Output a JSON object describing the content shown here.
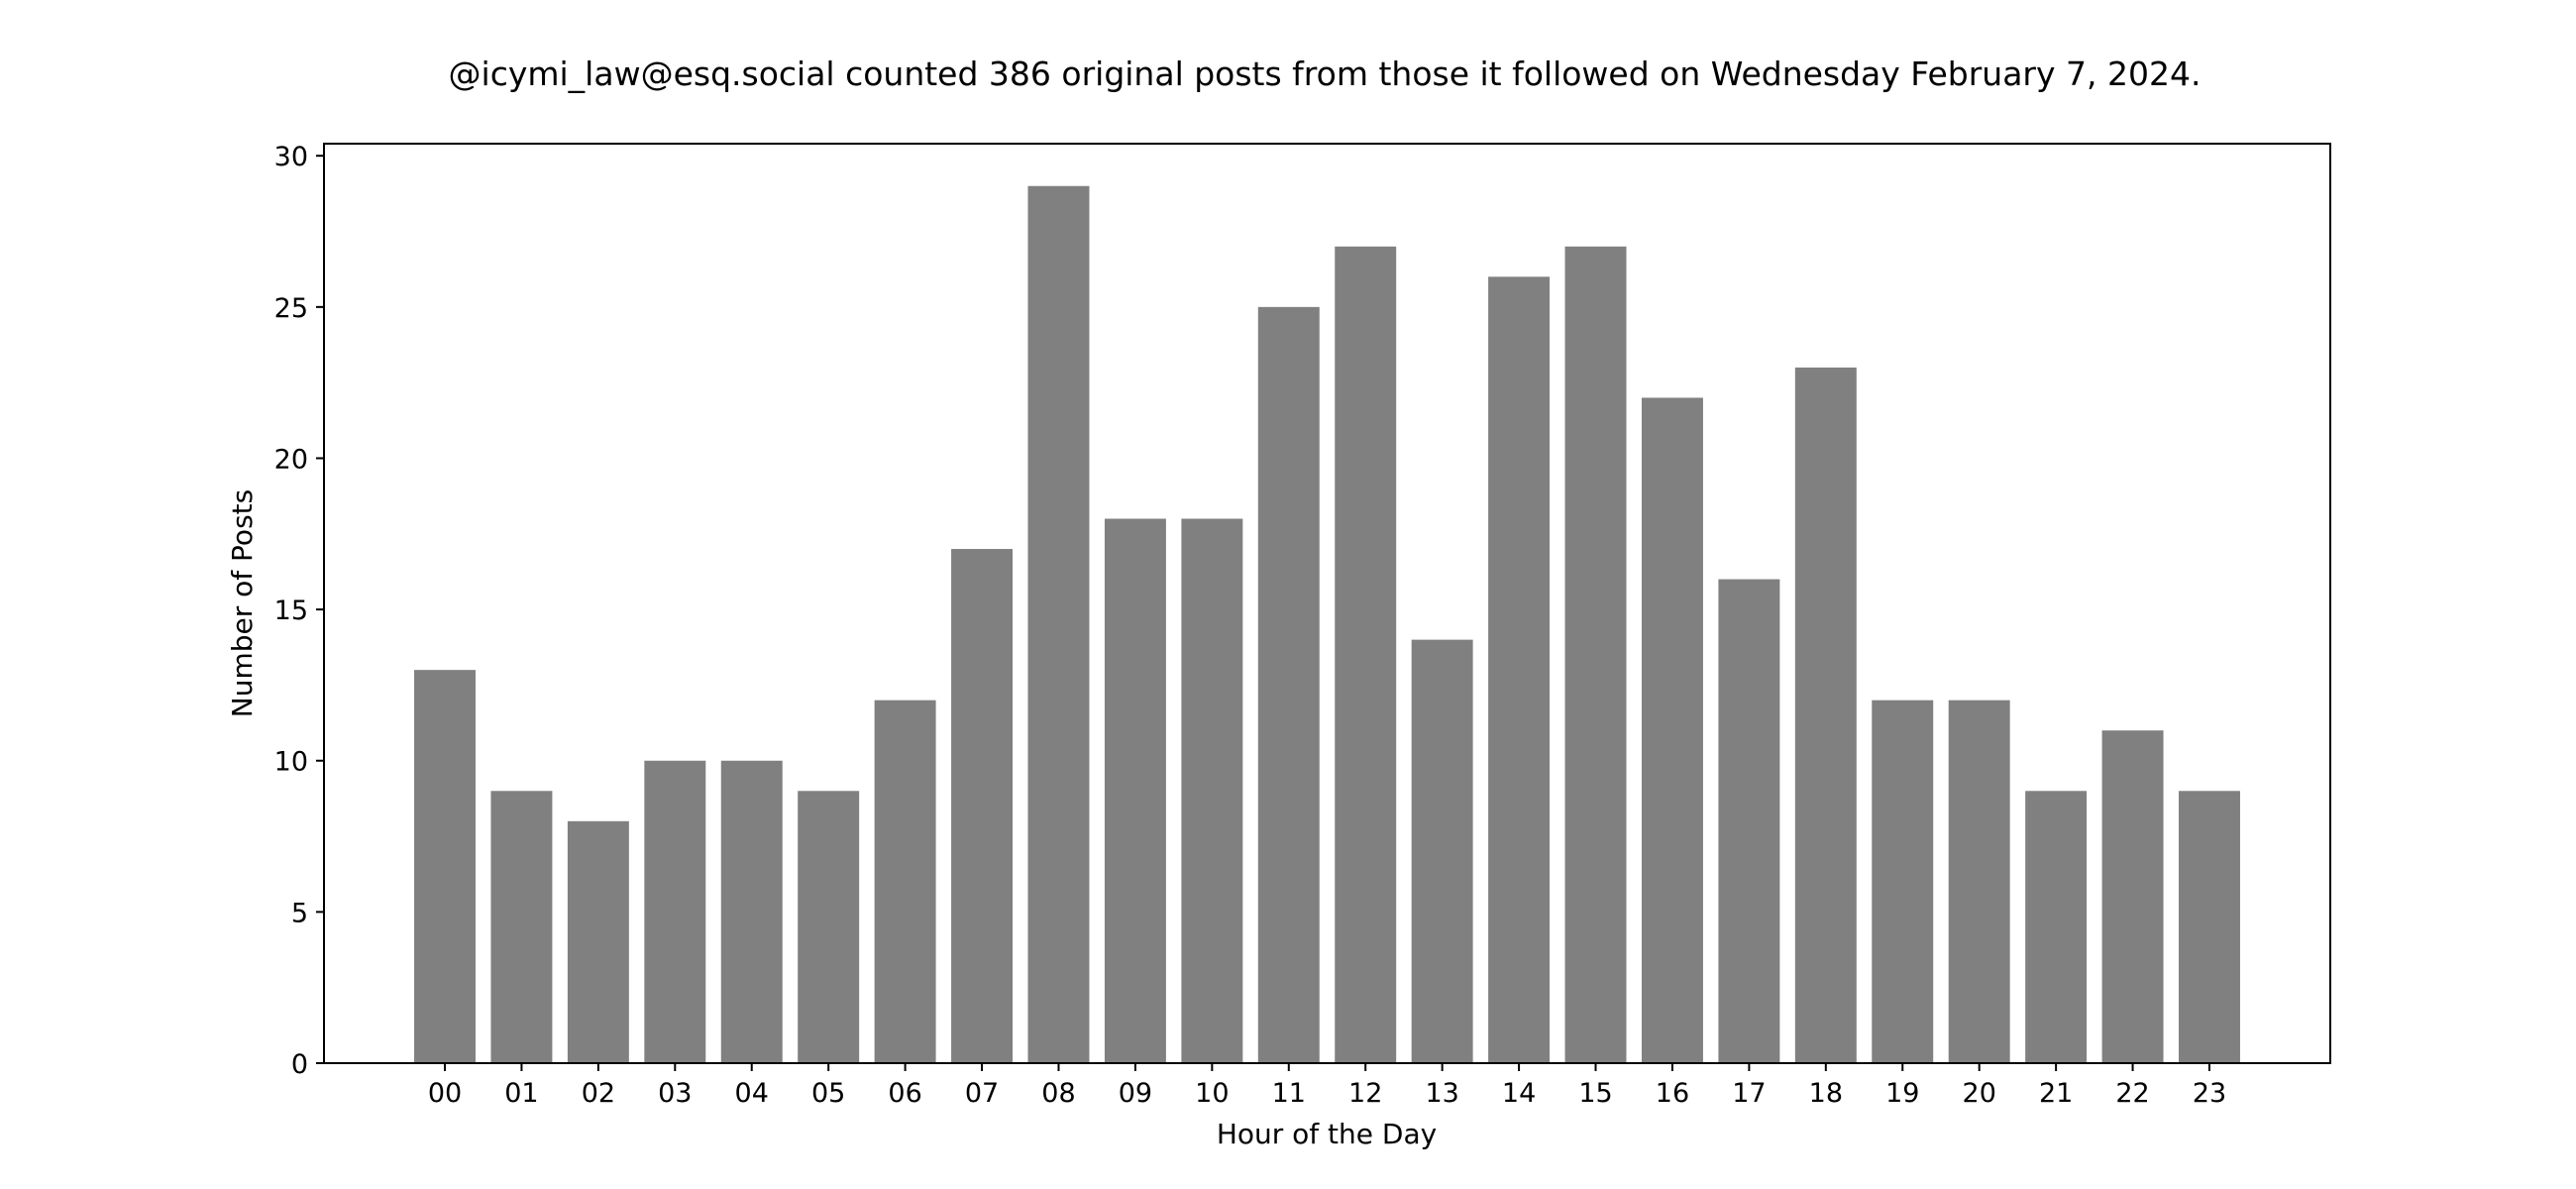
{
  "chart_data": {
    "type": "bar",
    "title": "@icymi_law@esq.social counted 386 original posts from those it followed on Wednesday February 7, 2024.",
    "xlabel": "Hour of the Day",
    "ylabel": "Number of Posts",
    "categories": [
      "00",
      "01",
      "02",
      "03",
      "04",
      "05",
      "06",
      "07",
      "08",
      "09",
      "10",
      "11",
      "12",
      "13",
      "14",
      "15",
      "16",
      "17",
      "18",
      "19",
      "20",
      "21",
      "22",
      "23"
    ],
    "values": [
      13,
      9,
      8,
      10,
      10,
      9,
      12,
      17,
      29,
      18,
      18,
      25,
      27,
      14,
      26,
      27,
      22,
      16,
      23,
      12,
      12,
      9,
      11,
      9
    ],
    "ylim": [
      0,
      30.4
    ],
    "yticks": [
      0,
      5,
      10,
      15,
      20,
      25,
      30
    ],
    "bar_color": "#808080",
    "grid": false,
    "legend": "none"
  }
}
